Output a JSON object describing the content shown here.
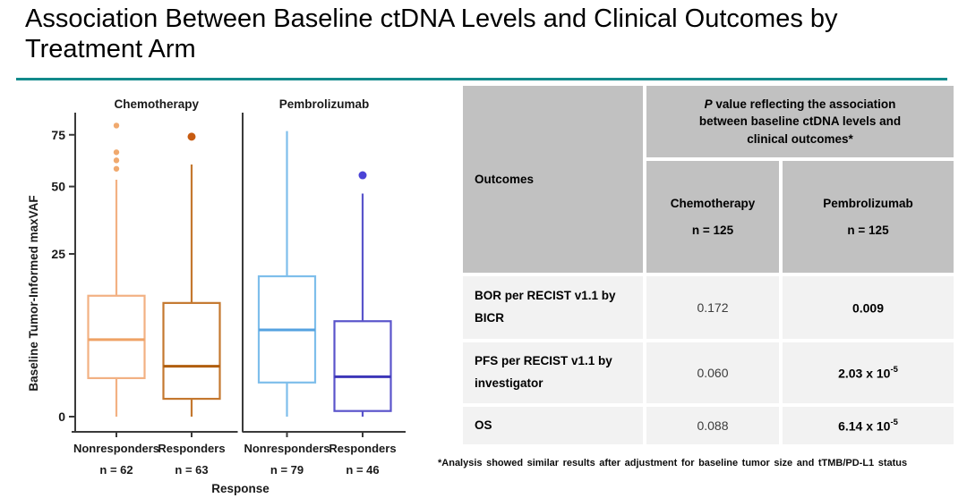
{
  "title": "Association Between Baseline ctDNA Levels and Clinical Outcomes by Treatment Arm",
  "colors": {
    "title_rule": "#128A8B",
    "axis": "#3A3A3A",
    "chart_text": "#1A1A1A",
    "table_header_bg": "#C1C1C1",
    "table_row_bg": "#F2F2F2"
  },
  "chart_data": {
    "type": "box",
    "ylabel": "Baseline Tumor-Informed maxVAF",
    "xlabel": "Response",
    "y_scale": "sqrt",
    "y_ticks": [
      0,
      25,
      50,
      75
    ],
    "panels": [
      {
        "title": "Chemotherapy",
        "groups": [
          {
            "label": "Nonresponders",
            "n_label": "n = 62",
            "whisker_low": 0,
            "q1": 1.4,
            "median": 5.6,
            "q3": 13.8,
            "whisker_high": 53,
            "outliers": [
              80,
              66,
              62,
              58
            ],
            "color": "#F2B183",
            "median_color": "#EFA265",
            "dot_color": "#F0A96E",
            "dot_r": 3.2
          },
          {
            "label": "Responders",
            "n_label": "n = 63",
            "whisker_low": 0,
            "q1": 0.3,
            "median": 2.4,
            "q3": 12.2,
            "whisker_high": 60,
            "outliers": [
              74
            ],
            "color": "#C4782F",
            "median_color": "#B05E0D",
            "dot_color": "#C75B11",
            "dot_r": 4.5
          }
        ]
      },
      {
        "title": "Pembrolizumab",
        "groups": [
          {
            "label": "Nonresponders",
            "n_label": "n = 79",
            "whisker_low": 0,
            "q1": 1.1,
            "median": 7.1,
            "q3": 18.6,
            "whisker_high": 77,
            "outliers": [],
            "color": "#7EBEEB",
            "median_color": "#54A2E0",
            "dot_color": "#7EBEEB",
            "dot_r": 3.2
          },
          {
            "label": "Responders",
            "n_label": "n = 46",
            "whisker_low": 0,
            "q1": 0.03,
            "median": 1.5,
            "q3": 8.6,
            "whisker_high": 47,
            "outliers": [
              55
            ],
            "color": "#5A54CB",
            "median_color": "#3D36B8",
            "dot_color": "#4B43D6",
            "dot_r": 4.5
          }
        ]
      }
    ]
  },
  "table": {
    "outcomes_label": "Outcomes",
    "p_header_italic": "P",
    "p_header_rest": " value reflecting the association between baseline ctDNA levels and clinical outcomes*",
    "columns": [
      {
        "name": "Chemotherapy",
        "n": "n = 125"
      },
      {
        "name": "Pembrolizumab",
        "n": "n = 125"
      }
    ],
    "rows": [
      {
        "outcome": "BOR per RECIST v1.1 by BICR",
        "chemotherapy": "0.172",
        "pembrolizumab": "0.009",
        "pembrolizumab_sup": ""
      },
      {
        "outcome": "PFS per RECIST v1.1 by investigator",
        "chemotherapy": "0.060",
        "pembrolizumab": "2.03 x 10",
        "pembrolizumab_sup": "-5"
      },
      {
        "outcome": "OS",
        "chemotherapy": "0.088",
        "pembrolizumab": "6.14 x 10",
        "pembrolizumab_sup": "-5"
      }
    ]
  },
  "footnote": "*Analysis showed similar results after adjustment for baseline tumor size and tTMB/PD-L1 status"
}
